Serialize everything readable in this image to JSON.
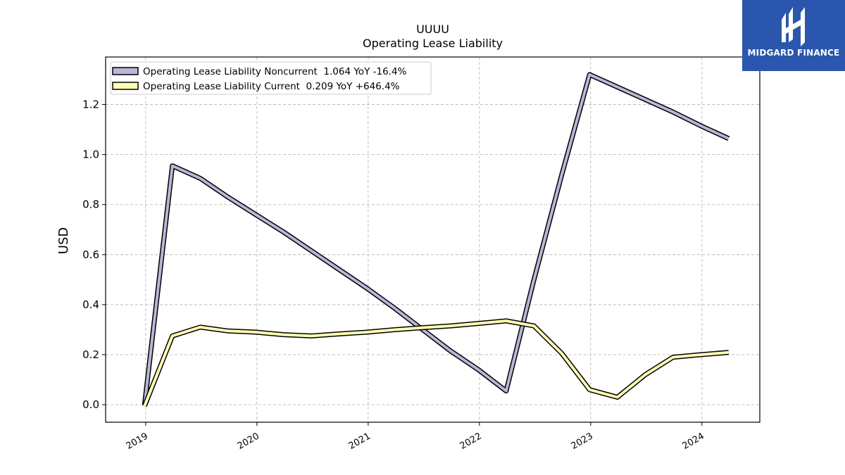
{
  "chart_data": {
    "type": "line",
    "title": "UUUU",
    "subtitle": "Operating Lease Liability",
    "ylabel": "USD",
    "xlabel": "",
    "ylim": [
      -0.07,
      1.39
    ],
    "xlim": [
      2018.64,
      2024.52
    ],
    "yticks": [
      0.0,
      0.2,
      0.4,
      0.6,
      0.8,
      1.0,
      1.2
    ],
    "ytick_labels": [
      "0.0",
      "0.2",
      "0.4",
      "0.6",
      "0.8",
      "1.0",
      "1.2"
    ],
    "xticks": [
      2019,
      2020,
      2021,
      2022,
      2023,
      2024
    ],
    "xtick_labels": [
      "2019",
      "2020",
      "2021",
      "2022",
      "2023",
      "2024"
    ],
    "grid": true,
    "legend_position": "top-left",
    "series": [
      {
        "name": "Operating Lease Liability Noncurrent",
        "legend_label": "Operating Lease Liability Noncurrent  1.064 YoY -16.4%",
        "color": "#b9b6d9",
        "x": [
          2018.99,
          2019.24,
          2019.49,
          2019.74,
          2019.99,
          2020.24,
          2020.49,
          2020.74,
          2020.99,
          2021.24,
          2021.49,
          2021.74,
          2021.99,
          2022.24,
          2022.49,
          2022.74,
          2022.99,
          2023.24,
          2023.49,
          2023.74,
          2023.99,
          2024.24
        ],
        "y": [
          0.0,
          0.955,
          0.905,
          0.83,
          0.76,
          0.69,
          0.615,
          0.54,
          0.465,
          0.385,
          0.3,
          0.215,
          0.14,
          0.055,
          0.5,
          0.92,
          1.32,
          1.27,
          1.22,
          1.17,
          1.115,
          1.064
        ]
      },
      {
        "name": "Operating Lease Liability Current",
        "legend_label": "Operating Lease Liability Current  0.209 YoY +646.4%",
        "color": "#ffffb3",
        "x": [
          2018.99,
          2019.24,
          2019.49,
          2019.74,
          2019.99,
          2020.24,
          2020.49,
          2020.74,
          2020.99,
          2021.24,
          2021.49,
          2021.74,
          2021.99,
          2022.24,
          2022.49,
          2022.74,
          2022.99,
          2023.24,
          2023.49,
          2023.74,
          2023.99,
          2024.24
        ],
        "y": [
          -0.005,
          0.275,
          0.31,
          0.295,
          0.29,
          0.28,
          0.275,
          0.283,
          0.29,
          0.3,
          0.308,
          0.315,
          0.325,
          0.335,
          0.315,
          0.205,
          0.06,
          0.03,
          0.12,
          0.19,
          0.2,
          0.209
        ]
      }
    ]
  },
  "logo": {
    "text": "MIDGARD FINANCE",
    "color": "#2a57ad"
  }
}
